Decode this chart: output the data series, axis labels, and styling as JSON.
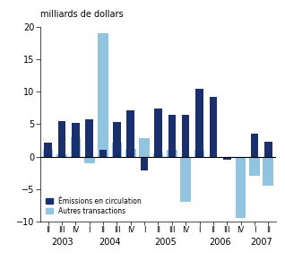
{
  "quarters": [
    "II",
    "III",
    "IV",
    "I",
    "II",
    "III",
    "IV",
    "I",
    "II",
    "III",
    "IV",
    "I",
    "II",
    "III",
    "IV",
    "I",
    "II"
  ],
  "years_row": [
    "2003",
    "",
    "",
    "2004",
    "",
    "",
    "",
    "2005",
    "",
    "",
    "",
    "2006",
    "",
    "",
    "",
    "2007",
    ""
  ],
  "emissions": [
    2.2,
    5.5,
    5.2,
    5.7,
    1.0,
    5.4,
    7.2,
    -2.2,
    7.4,
    6.5,
    6.5,
    10.5,
    9.2,
    -0.5,
    0.0,
    3.5,
    2.3
  ],
  "autres": [
    1.0,
    0.3,
    3.0,
    -1.0,
    19.0,
    2.2,
    1.2,
    2.8,
    0.5,
    1.0,
    -7.0,
    1.0,
    0.0,
    0.0,
    -9.5,
    -3.0,
    -4.5
  ],
  "color_emissions": "#1a2f6e",
  "color_autres": "#91c4e0",
  "ylabel": "milliards de dollars",
  "ylim": [
    -10,
    20
  ],
  "yticks": [
    -10,
    -5,
    0,
    5,
    10,
    15,
    20
  ],
  "legend_emissions": "Émissions en circulation",
  "legend_autres": "Autres transactions",
  "year_centers": [
    1.0,
    4.5,
    8.5,
    12.5,
    15.5
  ],
  "year_labels": [
    "2003",
    "2004",
    "2005",
    "2006",
    "2007"
  ]
}
